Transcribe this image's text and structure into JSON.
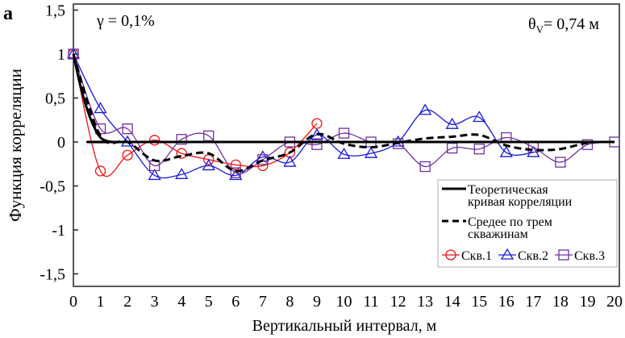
{
  "panel_label": "а",
  "annotation_left": "γ = 0,1%",
  "annotation_right": "θ",
  "annotation_right_sub": "V",
  "annotation_right_value": "= 0,74 м",
  "chart_data": {
    "type": "line",
    "xlabel": "Вертикальный интервал, м",
    "ylabel": "Функция корреляции",
    "xlim": [
      0,
      20
    ],
    "ylim": [
      -1.5,
      1.5
    ],
    "xticks": [
      "0",
      "1",
      "2",
      "3",
      "4",
      "5",
      "6",
      "7",
      "8",
      "9",
      "10",
      "11",
      "12",
      "13",
      "14",
      "15",
      "16",
      "17",
      "18",
      "19",
      "20"
    ],
    "yticks": [
      "1,5",
      "1",
      "0,5",
      "0",
      "-0,5",
      "-1",
      "-1,5"
    ],
    "ytick_values": [
      1.5,
      1,
      0.5,
      0,
      -0.5,
      -1,
      -1.5
    ],
    "legend_position": "bottom-right",
    "series": [
      {
        "name": "Теоретическая кривая корреляции",
        "name_lines": [
          "Теоретическая",
          "кривая корреляции"
        ],
        "color": "#000000",
        "style": "solid",
        "marker": "none",
        "x": [
          0,
          0.25,
          0.5,
          0.75,
          1,
          1.25,
          1.5,
          2,
          20
        ],
        "values": [
          1,
          0.65,
          0.38,
          0.18,
          0.05,
          0.01,
          0,
          0,
          0
        ]
      },
      {
        "name": "Среднее по трем скважинам",
        "name_lines": [
          "Средее по трем",
          "скважинам"
        ],
        "color": "#000000",
        "style": "dashed",
        "marker": "none",
        "x": [
          0,
          1,
          2,
          3,
          4,
          5,
          6,
          7,
          8,
          9,
          10,
          11,
          12,
          13,
          14,
          15,
          16,
          17,
          18,
          19,
          20
        ],
        "values": [
          1,
          0.07,
          0.0,
          -0.21,
          -0.16,
          -0.13,
          -0.33,
          -0.21,
          -0.12,
          0.09,
          -0.02,
          -0.06,
          -0.01,
          0.04,
          0.06,
          0.08,
          -0.04,
          -0.09,
          -0.08,
          -0.01,
          0.0
        ]
      },
      {
        "name": "Скв.1",
        "color": "#ee1111",
        "style": "solid",
        "marker": "circle",
        "x": [
          0,
          1,
          2,
          3,
          4,
          5,
          6,
          7,
          8,
          9
        ],
        "values": [
          1,
          -0.33,
          -0.15,
          0.02,
          -0.13,
          -0.2,
          -0.26,
          -0.27,
          -0.12,
          0.21
        ]
      },
      {
        "name": "Скв.2",
        "color": "#1a1adc",
        "style": "solid",
        "marker": "triangle",
        "x": [
          0,
          1,
          2,
          3,
          4,
          5,
          6,
          7,
          8,
          9,
          10,
          11,
          12,
          13,
          14,
          15,
          16,
          17
        ],
        "values": [
          1,
          0.38,
          0.0,
          -0.38,
          -0.37,
          -0.27,
          -0.38,
          -0.17,
          -0.23,
          0.08,
          -0.14,
          -0.13,
          0.0,
          0.36,
          0.2,
          0.28,
          -0.12,
          -0.12
        ]
      },
      {
        "name": "Скв.3",
        "color": "#7030a0",
        "style": "solid",
        "marker": "square",
        "x": [
          0,
          1,
          2,
          3,
          4,
          5,
          6,
          7,
          8,
          9,
          10,
          11,
          12,
          13,
          14,
          15,
          16,
          17,
          18,
          19,
          20
        ],
        "values": [
          1,
          0.15,
          0.15,
          -0.27,
          0.03,
          0.07,
          -0.35,
          -0.2,
          0.0,
          -0.03,
          0.1,
          0.0,
          -0.02,
          -0.28,
          -0.07,
          -0.08,
          0.05,
          -0.06,
          -0.23,
          -0.03,
          0.0
        ]
      }
    ]
  }
}
